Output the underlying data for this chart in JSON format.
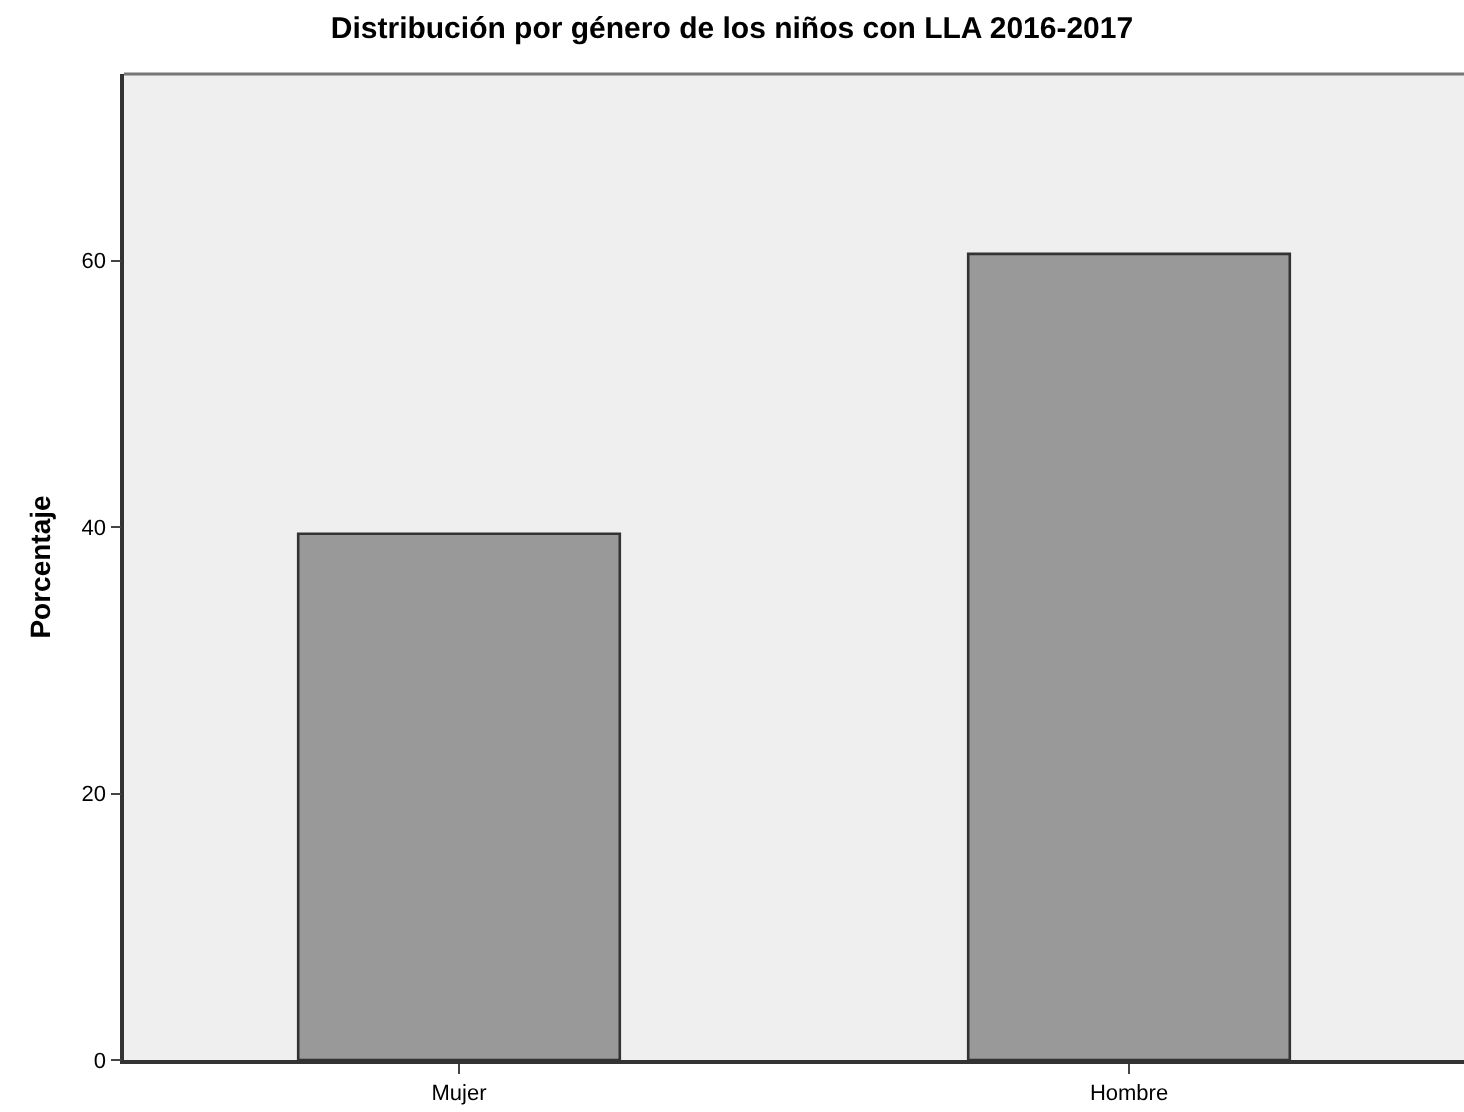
{
  "chart_data": {
    "type": "bar",
    "title": "Distribución por género de los niños con LLA 2016-2017",
    "ylabel": "Porcentaje",
    "categories": [
      "Mujer",
      "Hombre"
    ],
    "values": [
      39.5,
      60.5
    ],
    "color": "#999999",
    "ylim": [
      0,
      74
    ],
    "yticks": [
      0,
      20,
      40,
      60
    ],
    "grid": false
  }
}
